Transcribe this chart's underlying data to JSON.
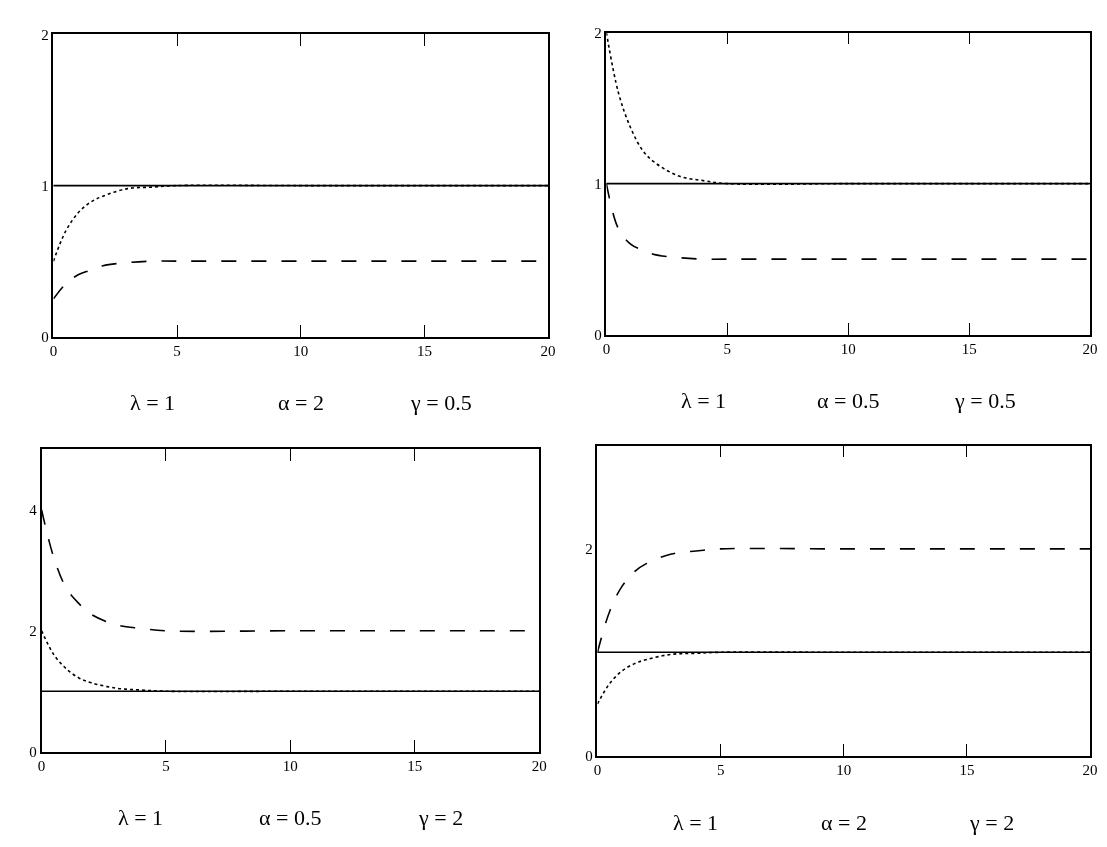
{
  "chart_data": [
    {
      "type": "line",
      "x": [
        0,
        0.5,
        1,
        1.5,
        2,
        3,
        4,
        5,
        10,
        15,
        20
      ],
      "xlim": [
        0,
        20
      ],
      "xticks": [
        0,
        5,
        10,
        15,
        20
      ],
      "ylim": [
        0,
        2
      ],
      "yticks": [
        0,
        1,
        2
      ],
      "ref_lines": [
        {
          "axis": "y",
          "value": 1,
          "color": "#000000",
          "line_style": "solid"
        }
      ],
      "series": [
        {
          "color": "#000000",
          "line_style": "dotted",
          "values": [
            0.5,
            0.7,
            0.82,
            0.89,
            0.93,
            0.98,
            0.99,
            1.0,
            1.0,
            1.0,
            1.0
          ]
        },
        {
          "color": "#000000",
          "line_style": "dashed",
          "values": [
            0.25,
            0.35,
            0.41,
            0.44,
            0.47,
            0.49,
            0.5,
            0.5,
            0.5,
            0.5,
            0.5
          ]
        }
      ],
      "annotations": [
        "λ = 1",
        "α = 2",
        "γ = 0.5"
      ]
    },
    {
      "type": "line",
      "x": [
        0,
        0.5,
        1,
        1.5,
        2,
        3,
        4,
        5,
        10,
        15,
        20
      ],
      "xlim": [
        0,
        20
      ],
      "xticks": [
        0,
        5,
        10,
        15,
        20
      ],
      "ylim": [
        0,
        2
      ],
      "yticks": [
        0,
        1,
        2
      ],
      "ref_lines": [
        {
          "axis": "y",
          "value": 1,
          "color": "#000000",
          "line_style": "solid"
        }
      ],
      "series": [
        {
          "color": "#000000",
          "line_style": "dotted",
          "values": [
            2,
            1.6,
            1.37,
            1.22,
            1.14,
            1.05,
            1.02,
            1.0,
            1.0,
            1.0,
            1.0
          ]
        },
        {
          "color": "#000000",
          "line_style": "dashed",
          "values": [
            1,
            0.7,
            0.6,
            0.56,
            0.53,
            0.51,
            0.5,
            0.5,
            0.5,
            0.5,
            0.5
          ]
        }
      ],
      "annotations": [
        "λ = 1",
        "α = 0.5",
        "γ = 0.5"
      ]
    },
    {
      "type": "line",
      "x": [
        0,
        0.5,
        1,
        1.5,
        2,
        3,
        4,
        5,
        10,
        15,
        20
      ],
      "xlim": [
        0,
        20
      ],
      "xticks": [
        0,
        5,
        10,
        15,
        20
      ],
      "ylim": [
        0,
        5
      ],
      "yticks": [
        0,
        2,
        4
      ],
      "ref_lines": [
        {
          "axis": "y",
          "value": 1,
          "color": "#000000",
          "line_style": "solid"
        }
      ],
      "series": [
        {
          "color": "#000000",
          "line_style": "dotted",
          "values": [
            2,
            1.6,
            1.37,
            1.22,
            1.14,
            1.05,
            1.02,
            1.0,
            1.0,
            1.0,
            1.0
          ]
        },
        {
          "color": "#000000",
          "line_style": "dashed",
          "values": [
            4,
            3.2,
            2.7,
            2.45,
            2.27,
            2.1,
            2.04,
            2.0,
            2.0,
            2.0,
            2.0
          ]
        }
      ],
      "annotations": [
        "λ = 1",
        "α = 0.5",
        "γ = 2"
      ]
    },
    {
      "type": "line",
      "x": [
        0,
        0.5,
        1,
        1.5,
        2,
        3,
        4,
        5,
        10,
        15,
        20
      ],
      "xlim": [
        0,
        20
      ],
      "xticks": [
        0,
        5,
        10,
        15,
        20
      ],
      "ylim": [
        0,
        3
      ],
      "yticks": [
        0,
        2
      ],
      "ref_lines": [
        {
          "axis": "y",
          "value": 1,
          "color": "#000000",
          "line_style": "solid"
        }
      ],
      "series": [
        {
          "color": "#000000",
          "line_style": "dotted",
          "values": [
            0.5,
            0.7,
            0.82,
            0.89,
            0.93,
            0.98,
            0.99,
            1.0,
            1.0,
            1.0,
            1.0
          ]
        },
        {
          "color": "#000000",
          "line_style": "dashed",
          "values": [
            1,
            1.4,
            1.64,
            1.78,
            1.86,
            1.95,
            1.98,
            2.0,
            2.0,
            2.0,
            2.0
          ]
        }
      ],
      "annotations": [
        "λ = 1",
        "α = 2",
        "γ = 2"
      ]
    }
  ]
}
